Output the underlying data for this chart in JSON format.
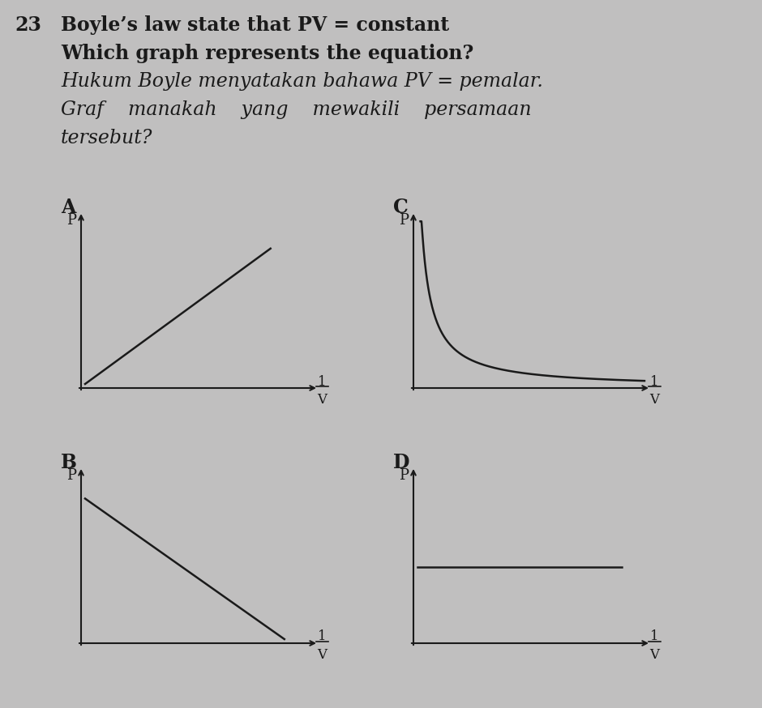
{
  "background_color": "#c0bfbf",
  "question_number": "23",
  "line1": "Boyle’s law state that PV = constant",
  "line2": "Which graph represents the equation?",
  "line3": "Hukum Boyle menyatakan bahawa PV = pemalar.",
  "line4": "Graf    manakah    yang    mewakili    persamaan",
  "line5": "tersebut?",
  "label_A": "A",
  "label_B": "B",
  "label_C": "C",
  "label_D": "D",
  "axis_label_P": "P",
  "text_color": "#1a1a1a",
  "graph_line_color": "#1a1a1a",
  "graph_bg": "#c0bfbf",
  "line1_bold": true,
  "line1_italic": false,
  "line2_bold": true,
  "line2_italic": false,
  "line3_bold": false,
  "line3_italic": true,
  "line4_bold": false,
  "line4_italic": true,
  "line5_bold": false,
  "line5_italic": true
}
